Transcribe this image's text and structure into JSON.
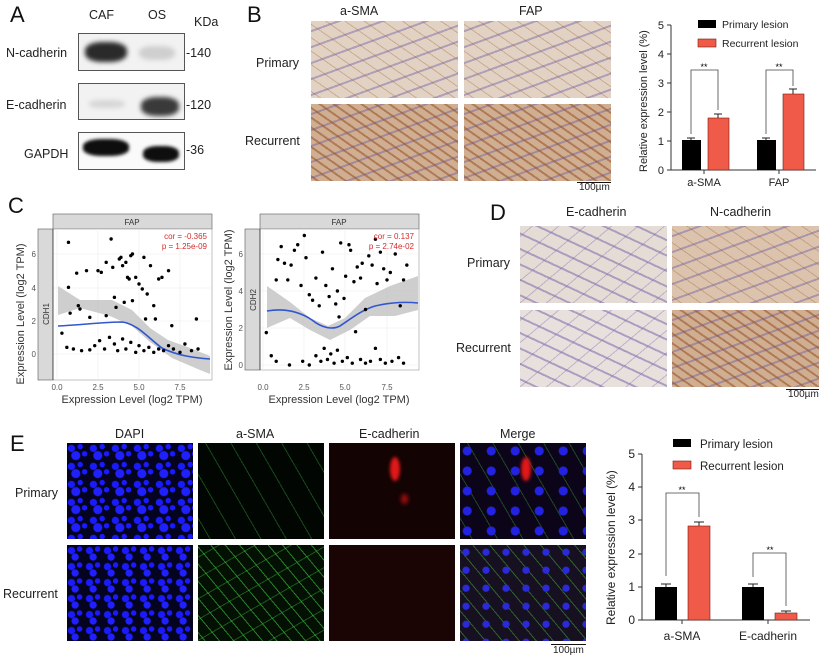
{
  "panels": {
    "A": {
      "letter": "A",
      "columns": [
        "CAF",
        "OS"
      ],
      "unit_label": "KDa",
      "rows": [
        {
          "label": "N-cadherin",
          "kda": "140"
        },
        {
          "label": "E-cadherin",
          "kda": "120"
        },
        {
          "label": "GAPDH",
          "kda": "36"
        }
      ]
    },
    "B": {
      "letter": "B",
      "columns": [
        "a-SMA",
        "FAP"
      ],
      "rows": [
        "Primary",
        "Recurrent"
      ],
      "scalebar": "100µm"
    },
    "C": {
      "letter": "C",
      "plots": [
        {
          "facet": "FAP",
          "gene": "CDH1",
          "cor": "cor = -0.365",
          "p": "p = 1.25e-09"
        },
        {
          "facet": "FAP",
          "gene": "CDH2",
          "cor": "cor = 0.137",
          "p": "p = 2.74e-02"
        }
      ],
      "xlabel": "Expression Level (log2 TPM)",
      "ylabel": "Expression Level (log2 TPM)",
      "xticks": [
        "0.0",
        "2.5",
        "5.0",
        "7.5"
      ],
      "yticks": [
        "0",
        "2",
        "4",
        "6"
      ]
    },
    "D": {
      "letter": "D",
      "columns": [
        "E-cadherin",
        "N-cadherin"
      ],
      "rows": [
        "Primary",
        "Recurrent"
      ],
      "scalebar": "100µm"
    },
    "E": {
      "letter": "E",
      "columns": [
        "DAPI",
        "a-SMA",
        "E-cadherin",
        "Merge"
      ],
      "rows": [
        "Primary",
        "Recurrent"
      ],
      "scalebar": "100µm"
    }
  },
  "chart_data": [
    {
      "type": "bar",
      "panel": "B",
      "title": "",
      "categories": [
        "a-SMA",
        "FAP"
      ],
      "series": [
        {
          "name": "Primary lesion",
          "color": "#000000",
          "values": [
            1.0,
            1.0
          ],
          "errors": [
            0.05,
            0.07
          ]
        },
        {
          "name": "Recurrent lesion",
          "color": "#f05a48",
          "values": [
            1.8,
            2.63
          ],
          "errors": [
            0.12,
            0.18
          ]
        }
      ],
      "significance": [
        "**",
        "**"
      ],
      "xlabel": "",
      "ylabel": "Relative expression level (%)",
      "ylim": [
        0,
        5
      ],
      "yticks": [
        0,
        1,
        2,
        3,
        4,
        5
      ],
      "legend_position": "top"
    },
    {
      "type": "bar",
      "panel": "E",
      "title": "",
      "categories": [
        "a-SMA",
        "E-cadherin"
      ],
      "series": [
        {
          "name": "Primary lesion",
          "color": "#000000",
          "values": [
            1.0,
            1.0
          ],
          "errors": [
            0.08,
            0.07
          ]
        },
        {
          "name": "Recurrent lesion",
          "color": "#f05a48",
          "values": [
            2.83,
            0.22
          ],
          "errors": [
            0.13,
            0.04
          ]
        }
      ],
      "significance": [
        "**",
        "**"
      ],
      "xlabel": "",
      "ylabel": "Relative expression level (%)",
      "ylim": [
        0,
        5
      ],
      "yticks": [
        0,
        1,
        2,
        3,
        4,
        5
      ],
      "legend_position": "top"
    },
    {
      "type": "scatter",
      "panel": "C-left",
      "title": "FAP",
      "facet_label": "CDH1",
      "xlabel": "Expression Level (log2 TPM)",
      "ylabel": "Expression Level (log2 TPM)",
      "xlim": [
        -0.3,
        9.0
      ],
      "ylim": [
        -1.2,
        7.2
      ],
      "xticks": [
        0.0,
        2.5,
        5.0,
        7.5
      ],
      "yticks": [
        0,
        2,
        4,
        6
      ],
      "annotation": [
        "cor = -0.365",
        "p = 1.25e-09"
      ],
      "trend": {
        "x": [
          0.3,
          1.5,
          2.5,
          3.5,
          4.0,
          5.0,
          6.0,
          7.0,
          8.0,
          8.7
        ],
        "y": [
          1.7,
          1.7,
          1.75,
          1.9,
          1.85,
          1.1,
          0.6,
          0.4,
          0.3,
          0.3
        ]
      },
      "points": [
        [
          0.3,
          1.25
        ],
        [
          0.7,
          6.7
        ],
        [
          0.7,
          4.0
        ],
        [
          0.8,
          2.45
        ],
        [
          1.2,
          4.85
        ],
        [
          1.3,
          2.9
        ],
        [
          1.4,
          2.7
        ],
        [
          1.8,
          5.0
        ],
        [
          2.0,
          2.2
        ],
        [
          2.5,
          5.0
        ],
        [
          2.7,
          4.9
        ],
        [
          3.0,
          5.5
        ],
        [
          3.0,
          2.3
        ],
        [
          3.3,
          6.9
        ],
        [
          3.4,
          5.2
        ],
        [
          3.5,
          3.4
        ],
        [
          3.6,
          2.8
        ],
        [
          3.8,
          5.7
        ],
        [
          3.9,
          5.8
        ],
        [
          4.0,
          5.3
        ],
        [
          4.1,
          3.1
        ],
        [
          4.2,
          5.5
        ],
        [
          4.3,
          4.6
        ],
        [
          4.4,
          4.5
        ],
        [
          4.5,
          5.9
        ],
        [
          4.6,
          6.0
        ],
        [
          4.6,
          3.2
        ],
        [
          4.8,
          4.6
        ],
        [
          5.0,
          4.2
        ],
        [
          5.2,
          3.9
        ],
        [
          5.3,
          5.8
        ],
        [
          5.4,
          2.1
        ],
        [
          5.5,
          3.6
        ],
        [
          5.7,
          5.3
        ],
        [
          5.9,
          2.9
        ],
        [
          6.0,
          2.1
        ],
        [
          6.2,
          4.5
        ],
        [
          6.4,
          4.6
        ],
        [
          6.8,
          5.0
        ],
        [
          7.0,
          1.7
        ],
        [
          8.5,
          2.1
        ],
        [
          0.6,
          0.4
        ],
        [
          1.0,
          0.3
        ],
        [
          1.5,
          0.2
        ],
        [
          2.0,
          0.25
        ],
        [
          2.3,
          0.5
        ],
        [
          2.6,
          0.8
        ],
        [
          2.9,
          0.3
        ],
        [
          3.2,
          1.0
        ],
        [
          3.5,
          0.6
        ],
        [
          3.7,
          0.2
        ],
        [
          4.0,
          0.9
        ],
        [
          4.2,
          0.3
        ],
        [
          4.5,
          0.7
        ],
        [
          4.8,
          0.1
        ],
        [
          5.0,
          0.5
        ],
        [
          5.3,
          0.2
        ],
        [
          5.6,
          0.4
        ],
        [
          5.9,
          0.1
        ],
        [
          6.2,
          0.3
        ],
        [
          6.5,
          0.2
        ],
        [
          6.8,
          0.5
        ],
        [
          7.1,
          0.3
        ],
        [
          7.5,
          0.1
        ],
        [
          7.8,
          0.6
        ],
        [
          8.2,
          0.2
        ],
        [
          8.6,
          0.3
        ]
      ]
    },
    {
      "type": "scatter",
      "panel": "C-right",
      "title": "FAP",
      "facet_label": "CDH2",
      "xlabel": "Expression Level (log2 TPM)",
      "ylabel": "Expression Level (log2 TPM)",
      "xlim": [
        -0.3,
        9.0
      ],
      "ylim": [
        -0.3,
        7.2
      ],
      "xticks": [
        0.0,
        2.5,
        5.0,
        7.5
      ],
      "yticks": [
        0,
        2,
        4,
        6
      ],
      "annotation": [
        "cor = 0.137",
        "p = 2.74e-02"
      ],
      "trend": {
        "x": [
          0.2,
          1.5,
          2.5,
          3.3,
          4.0,
          4.5,
          5.5,
          6.5,
          7.5,
          8.7
        ],
        "y": [
          2.9,
          3.05,
          2.8,
          2.2,
          2.0,
          2.3,
          3.1,
          3.5,
          3.6,
          3.5
        ]
      },
      "points": [
        [
          0.2,
          1.75
        ],
        [
          0.5,
          0.5
        ],
        [
          0.8,
          4.6
        ],
        [
          0.9,
          5.7
        ],
        [
          1.1,
          6.4
        ],
        [
          1.3,
          5.5
        ],
        [
          1.5,
          4.6
        ],
        [
          1.7,
          5.4
        ],
        [
          1.9,
          6.2
        ],
        [
          2.1,
          6.5
        ],
        [
          2.3,
          4.3
        ],
        [
          2.5,
          7.0
        ],
        [
          2.6,
          5.8
        ],
        [
          2.8,
          3.8
        ],
        [
          3.0,
          3.5
        ],
        [
          3.2,
          4.7
        ],
        [
          3.4,
          3.2
        ],
        [
          3.6,
          6.1
        ],
        [
          3.8,
          4.3
        ],
        [
          4.0,
          3.7
        ],
        [
          4.2,
          5.2
        ],
        [
          4.4,
          3.3
        ],
        [
          4.5,
          4.0
        ],
        [
          4.6,
          2.6
        ],
        [
          4.7,
          6.6
        ],
        [
          4.9,
          3.6
        ],
        [
          5.0,
          4.8
        ],
        [
          5.2,
          6.5
        ],
        [
          5.3,
          6.2
        ],
        [
          5.5,
          4.5
        ],
        [
          5.7,
          5.3
        ],
        [
          5.9,
          4.7
        ],
        [
          6.0,
          5.5
        ],
        [
          6.2,
          3.0
        ],
        [
          6.4,
          5.9
        ],
        [
          6.6,
          5.4
        ],
        [
          6.8,
          6.8
        ],
        [
          6.9,
          4.4
        ],
        [
          7.1,
          6.1
        ],
        [
          7.3,
          5.2
        ],
        [
          7.5,
          4.6
        ],
        [
          7.7,
          5.0
        ],
        [
          8.0,
          6.0
        ],
        [
          8.3,
          3.2
        ],
        [
          8.5,
          4.6
        ],
        [
          8.7,
          5.4
        ],
        [
          0.8,
          0.2
        ],
        [
          1.6,
          0.0
        ],
        [
          2.4,
          0.2
        ],
        [
          2.8,
          0.0
        ],
        [
          3.2,
          0.5
        ],
        [
          3.5,
          0.2
        ],
        [
          3.7,
          0.9
        ],
        [
          3.9,
          0.3
        ],
        [
          4.1,
          0.6
        ],
        [
          4.3,
          0.1
        ],
        [
          4.5,
          0.8
        ],
        [
          4.8,
          0.2
        ],
        [
          5.1,
          0.4
        ],
        [
          5.4,
          0.1
        ],
        [
          5.6,
          1.8
        ],
        [
          5.9,
          0.3
        ],
        [
          6.2,
          0.1
        ],
        [
          6.5,
          0.2
        ],
        [
          6.8,
          0.9
        ],
        [
          7.1,
          0.3
        ],
        [
          7.4,
          0.1
        ],
        [
          7.8,
          0.2
        ],
        [
          8.2,
          0.4
        ],
        [
          8.5,
          0.1
        ]
      ]
    }
  ]
}
